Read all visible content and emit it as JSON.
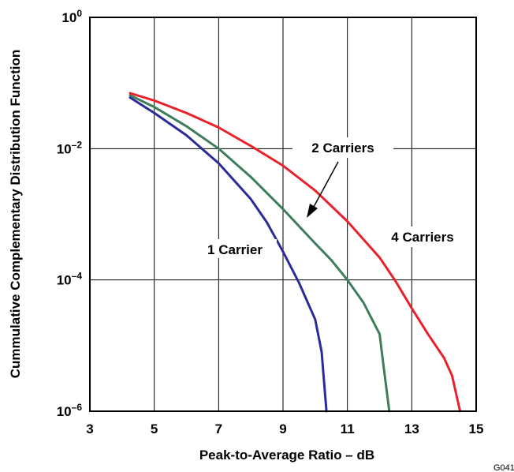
{
  "chart_data": {
    "type": "line",
    "xlabel": "Peak-to-Average Ratio – dB",
    "ylabel": "Cummulative Complementary Distribution Function",
    "xlim": [
      3,
      15
    ],
    "ylim_exponent": [
      -6,
      0
    ],
    "yscale": "log",
    "grid": true,
    "x_ticks": [
      "3",
      "5",
      "7",
      "9",
      "11",
      "13",
      "15"
    ],
    "y_ticks": [
      {
        "value_exp": 0,
        "base": "10",
        "exp": "0"
      },
      {
        "value_exp": -2,
        "base": "10",
        "exp": "–2"
      },
      {
        "value_exp": -4,
        "base": "10",
        "exp": "–4"
      },
      {
        "value_exp": -6,
        "base": "10",
        "exp": "–6"
      }
    ],
    "series": [
      {
        "name": "1 Carrier",
        "color": "#2b2b9a",
        "points": [
          [
            4.25,
            0.06
          ],
          [
            5,
            0.035
          ],
          [
            6,
            0.016
          ],
          [
            7,
            0.006
          ],
          [
            8,
            0.0017
          ],
          [
            8.5,
            0.00075
          ],
          [
            9,
            0.00027
          ],
          [
            9.5,
            9e-05
          ],
          [
            10,
            2.5e-05
          ],
          [
            10.2,
            8e-06
          ],
          [
            10.35,
            1e-06
          ]
        ]
      },
      {
        "name": "2 Carriers",
        "color": "#3e7d5a",
        "points": [
          [
            4.25,
            0.065
          ],
          [
            5,
            0.043
          ],
          [
            6,
            0.022
          ],
          [
            7,
            0.01
          ],
          [
            8,
            0.0037
          ],
          [
            9,
            0.0012
          ],
          [
            10,
            0.00036
          ],
          [
            10.5,
            0.0002
          ],
          [
            11,
            0.0001
          ],
          [
            11.5,
            4.5e-05
          ],
          [
            12,
            1.5e-05
          ],
          [
            12.1,
            6e-06
          ],
          [
            12.3,
            1e-06
          ]
        ]
      },
      {
        "name": "4 Carriers",
        "color": "#e8212b",
        "points": [
          [
            4.25,
            0.07
          ],
          [
            5,
            0.054
          ],
          [
            6,
            0.035
          ],
          [
            7,
            0.021
          ],
          [
            8,
            0.011
          ],
          [
            9,
            0.0055
          ],
          [
            10,
            0.0023
          ],
          [
            11,
            0.00078
          ],
          [
            12,
            0.00022
          ],
          [
            12.5,
            9.5e-05
          ],
          [
            13,
            3.7e-05
          ],
          [
            13.5,
            1.5e-05
          ],
          [
            14,
            6.5e-06
          ],
          [
            14.25,
            3.5e-06
          ],
          [
            14.5,
            1e-06
          ]
        ]
      }
    ],
    "annotations": [
      {
        "text": "2 Carriers",
        "arrow": true
      },
      {
        "text": "1 Carrier"
      },
      {
        "text": "4 Carriers"
      }
    ],
    "figure_code": "G041"
  }
}
